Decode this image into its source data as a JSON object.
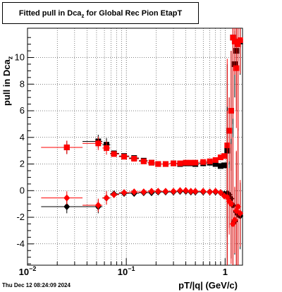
{
  "title": {
    "main": "Fitted pull in Dca",
    "sub": "z",
    "rest": " for Global Rec Pion EtapT"
  },
  "ylabel": {
    "main": "pull in Dca",
    "sub": "z"
  },
  "xlabel": "pT/|q| (GeV/c)",
  "datestamp": "Thu Dec 12 08:24:09 2024",
  "colors": {
    "series_black": "#000000",
    "series_red": "#ff0000",
    "grid": "#000000",
    "frame": "#000000"
  },
  "chart_data": {
    "type": "scatter",
    "xscale": "log",
    "xlim": [
      0.01,
      1.5
    ],
    "ylim": [
      -5.6,
      12.2
    ],
    "grid": true,
    "x_ticks": [
      {
        "value": 0.01,
        "label": "10",
        "sup": "−2"
      },
      {
        "value": 0.1,
        "label": "10",
        "sup": "−1"
      },
      {
        "value": 1,
        "label": "1",
        "sup": ""
      }
    ],
    "y_ticks": [
      -4,
      -2,
      0,
      2,
      4,
      6,
      8,
      10
    ],
    "series": [
      {
        "marker": "square",
        "color": "#000000",
        "x": [
          0.025,
          0.052,
          0.063,
          0.075,
          0.095,
          0.12,
          0.15,
          0.18,
          0.21,
          0.25,
          0.3,
          0.35,
          0.4,
          0.45,
          0.5,
          0.6,
          0.7,
          0.8,
          0.9,
          0.98,
          1.05,
          1.1,
          1.15,
          1.2,
          1.25,
          1.3,
          1.35,
          1.42
        ],
        "y": [
          3.25,
          3.7,
          3.45,
          2.8,
          2.6,
          2.45,
          2.25,
          2.1,
          2.0,
          2.0,
          2.05,
          2.0,
          2.05,
          2.05,
          2.0,
          2.05,
          2.1,
          2.0,
          1.85,
          1.9,
          3.0,
          4.5,
          6.0,
          11.5,
          9.5,
          10.5,
          11.0,
          11.2
        ]
      },
      {
        "marker": "square",
        "color": "#ff0000",
        "x": [
          0.025,
          0.052,
          0.063,
          0.075,
          0.095,
          0.12,
          0.15,
          0.18,
          0.21,
          0.25,
          0.3,
          0.35,
          0.4,
          0.45,
          0.5,
          0.6,
          0.7,
          0.8,
          0.9,
          0.98,
          1.05,
          1.1,
          1.15,
          1.2,
          1.25,
          1.3,
          1.35,
          1.42
        ],
        "y": [
          3.25,
          3.55,
          3.2,
          2.75,
          2.55,
          2.4,
          2.2,
          2.1,
          2.0,
          2.0,
          2.05,
          2.05,
          2.1,
          2.1,
          2.1,
          2.15,
          2.2,
          2.3,
          2.5,
          2.6,
          3.4,
          4.5,
          6.0,
          11.5,
          11.2,
          9.2,
          11.0,
          11.3
        ]
      },
      {
        "marker": "diamond",
        "color": "#000000",
        "x": [
          0.025,
          0.052,
          0.063,
          0.075,
          0.095,
          0.12,
          0.15,
          0.18,
          0.21,
          0.25,
          0.3,
          0.35,
          0.4,
          0.45,
          0.5,
          0.6,
          0.7,
          0.8,
          0.9,
          0.98,
          1.05,
          1.1,
          1.15,
          1.2,
          1.25,
          1.3,
          1.35,
          1.42
        ],
        "y": [
          -1.2,
          -1.2,
          -0.55,
          -0.25,
          -0.2,
          -0.2,
          -0.15,
          -0.15,
          -0.1,
          -0.1,
          -0.1,
          -0.05,
          -0.05,
          -0.1,
          -0.1,
          -0.1,
          -0.1,
          -0.1,
          -0.15,
          -0.25,
          -0.2,
          -0.3,
          -0.6,
          -1.1,
          -2.3,
          -1.6,
          -1.8,
          -1.9
        ]
      },
      {
        "marker": "diamond",
        "color": "#ff0000",
        "x": [
          0.025,
          0.052,
          0.063,
          0.075,
          0.095,
          0.12,
          0.15,
          0.18,
          0.21,
          0.25,
          0.3,
          0.35,
          0.4,
          0.45,
          0.5,
          0.6,
          0.7,
          0.8,
          0.9,
          0.98,
          1.05,
          1.1,
          1.15,
          1.2,
          1.25,
          1.3,
          1.35,
          1.42
        ],
        "y": [
          -0.55,
          -1.1,
          -0.55,
          -0.3,
          -0.15,
          -0.1,
          -0.1,
          -0.05,
          -0.05,
          -0.05,
          -0.05,
          0.0,
          0.0,
          -0.05,
          -0.05,
          -0.05,
          -0.1,
          -0.05,
          -0.15,
          -0.4,
          -0.5,
          -0.8,
          -1.0,
          -2.5,
          -2.2,
          -1.5,
          -1.2,
          -1.7
        ]
      }
    ]
  }
}
